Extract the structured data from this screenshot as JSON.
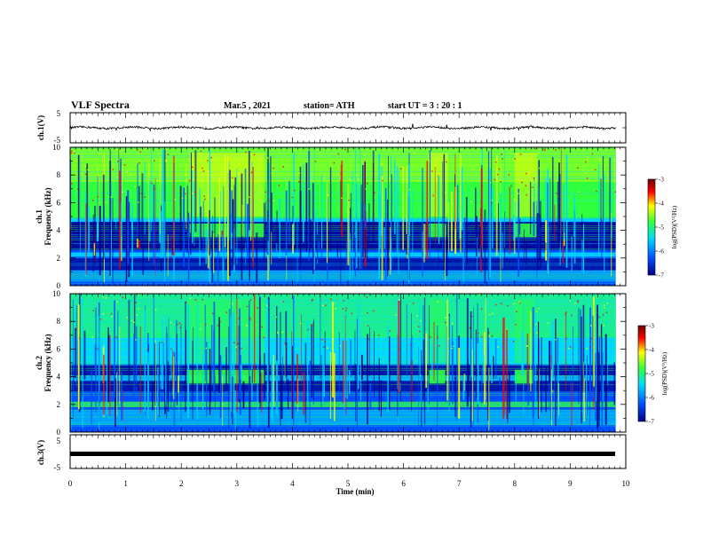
{
  "header": {
    "title": "VLF Spectra",
    "date": "Mar.5  , 2021",
    "station": "station= ATH",
    "start": "start  UT  =   3  : 20 : 1"
  },
  "chart_data": [
    {
      "type": "line",
      "name": "ch1-voltage",
      "ylabel": "ch.1(V)",
      "ylim": [
        -5,
        5
      ],
      "yticks": [
        "5",
        "-5"
      ]
    },
    {
      "type": "heatmap",
      "name": "ch1-spectrogram",
      "ylabel_line1": "ch.1",
      "ylabel_line2": "Frequency (kHz)",
      "ylim": [
        0,
        10
      ],
      "yticks": [
        "0",
        "2",
        "4",
        "6",
        "8",
        "10"
      ],
      "colorbar": {
        "label": "log(PSD)(V²/Hz)",
        "range": [
          -7,
          -3
        ],
        "ticks": [
          "-3",
          "-4",
          "-5",
          "-6",
          "-7"
        ]
      }
    },
    {
      "type": "heatmap",
      "name": "ch2-spectrogram",
      "ylabel_line1": "ch.2",
      "ylabel_line2": "Frequency (kHz)",
      "ylim": [
        0,
        10
      ],
      "yticks": [
        "0",
        "2",
        "4",
        "6",
        "8",
        "10"
      ],
      "colorbar": {
        "label": "log(PSD)(V²/Hz)",
        "range": [
          -7,
          -3
        ],
        "ticks": [
          "-3",
          "-4",
          "-5",
          "-6",
          "-7"
        ]
      }
    },
    {
      "type": "line",
      "name": "ch3-voltage",
      "ylabel": "ch.3(V)",
      "ylim": [
        -5,
        5
      ],
      "yticks": [
        "5",
        "-5"
      ],
      "xlabel": "Time (min)",
      "xlim": [
        0,
        10
      ],
      "xticks": [
        "0",
        "1",
        "2",
        "3",
        "4",
        "5",
        "6",
        "7",
        "8",
        "9",
        "10"
      ]
    }
  ],
  "colors": {
    "c_low": "#00008c",
    "c_blue": "#0050ff",
    "c_cyan": "#00d8ff",
    "c_green": "#30ff40",
    "c_yellow": "#ffff00",
    "c_red": "#ff0000",
    "c_high": "#6e0000"
  }
}
